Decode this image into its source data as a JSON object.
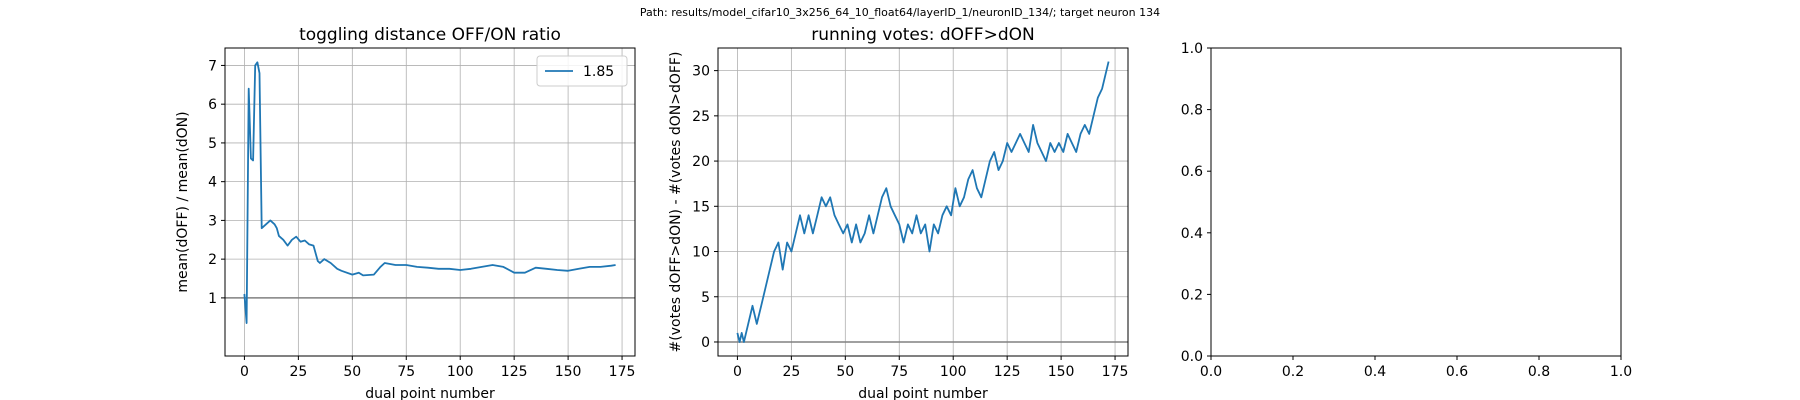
{
  "suptitle": "Path: results/model_cifar10_3x256_64_10_float64/layerID_1/neuronID_134/; target neuron 134",
  "colors": {
    "series": "#1f77b4",
    "grid": "#b0b0b0",
    "reference_line": "#808080"
  },
  "chart_data": [
    {
      "type": "line",
      "title": "toggling distance OFF/ON ratio",
      "xlabel": "dual point number",
      "ylabel": "mean(dOFF) / mean(dON)",
      "xlim": [
        -9,
        181
      ],
      "ylim": [
        -0.5,
        7.45
      ],
      "xticks": [
        0,
        25,
        50,
        75,
        100,
        125,
        150,
        175
      ],
      "yticks": [
        1,
        2,
        3,
        4,
        5,
        6,
        7
      ],
      "grid": true,
      "reference_y": 1,
      "legend": {
        "placement": "upper-right",
        "entries": [
          "1.85"
        ]
      },
      "series": [
        {
          "name": "1.85",
          "x": [
            0,
            1,
            2,
            3,
            4,
            5,
            6,
            7,
            8,
            10,
            12,
            14,
            15,
            16,
            18,
            20,
            22,
            24,
            26,
            28,
            30,
            32,
            34,
            35,
            37,
            40,
            43,
            45,
            50,
            53,
            55,
            60,
            63,
            65,
            70,
            75,
            80,
            85,
            90,
            95,
            100,
            105,
            110,
            115,
            120,
            125,
            130,
            135,
            140,
            145,
            150,
            155,
            160,
            165,
            170,
            172
          ],
          "y": [
            1.1,
            0.35,
            6.4,
            4.6,
            4.55,
            7.0,
            7.08,
            6.8,
            2.8,
            2.9,
            3.0,
            2.9,
            2.8,
            2.6,
            2.5,
            2.35,
            2.5,
            2.58,
            2.45,
            2.48,
            2.38,
            2.35,
            1.95,
            1.9,
            2.0,
            1.9,
            1.75,
            1.7,
            1.6,
            1.65,
            1.58,
            1.6,
            1.8,
            1.9,
            1.85,
            1.85,
            1.8,
            1.78,
            1.75,
            1.75,
            1.72,
            1.75,
            1.8,
            1.85,
            1.8,
            1.65,
            1.65,
            1.78,
            1.75,
            1.72,
            1.7,
            1.75,
            1.8,
            1.8,
            1.83,
            1.85
          ]
        }
      ]
    },
    {
      "type": "line",
      "title": "running votes: dOFF>dON",
      "xlabel": "dual point number",
      "ylabel": "#(votes dOFF>dON) - #(votes dON>dOFF)",
      "xlim": [
        -9,
        181
      ],
      "ylim": [
        -1.55,
        32.5
      ],
      "xticks": [
        0,
        25,
        50,
        75,
        100,
        125,
        150,
        175
      ],
      "yticks": [
        0,
        5,
        10,
        15,
        20,
        25,
        30
      ],
      "grid": true,
      "reference_y": 0,
      "series": [
        {
          "x": [
            0,
            1,
            2,
            3,
            5,
            7,
            9,
            11,
            13,
            15,
            17,
            19,
            21,
            23,
            25,
            27,
            29,
            31,
            33,
            35,
            37,
            39,
            41,
            43,
            45,
            47,
            49,
            51,
            53,
            55,
            57,
            59,
            61,
            63,
            65,
            67,
            69,
            71,
            73,
            75,
            77,
            79,
            81,
            83,
            85,
            87,
            89,
            91,
            93,
            95,
            97,
            99,
            101,
            103,
            105,
            107,
            109,
            111,
            113,
            115,
            117,
            119,
            121,
            123,
            125,
            127,
            129,
            131,
            133,
            135,
            137,
            139,
            141,
            143,
            145,
            147,
            149,
            151,
            153,
            155,
            157,
            159,
            161,
            163,
            165,
            167,
            169,
            172
          ],
          "y": [
            1,
            0,
            1,
            0,
            2,
            4,
            2,
            4,
            6,
            8,
            10,
            11,
            8,
            11,
            10,
            12,
            14,
            12,
            14,
            12,
            14,
            16,
            15,
            16,
            14,
            13,
            12,
            13,
            11,
            13,
            11,
            12,
            14,
            12,
            14,
            16,
            17,
            15,
            14,
            13,
            11,
            13,
            12,
            14,
            12,
            13,
            10,
            13,
            12,
            14,
            15,
            14,
            17,
            15,
            16,
            18,
            19,
            17,
            16,
            18,
            20,
            21,
            19,
            20,
            22,
            21,
            22,
            23,
            22,
            21,
            24,
            22,
            21,
            20,
            22,
            21,
            22,
            21,
            23,
            22,
            21,
            23,
            24,
            23,
            25,
            27,
            28,
            31
          ]
        }
      ]
    },
    {
      "type": "line",
      "title": "",
      "xlim": [
        0,
        1
      ],
      "ylim": [
        0,
        1
      ],
      "xticks": [
        0.0,
        0.2,
        0.4,
        0.6,
        0.8,
        1.0
      ],
      "yticks": [
        0.0,
        0.2,
        0.4,
        0.6,
        0.8,
        1.0
      ],
      "xtick_labels": [
        "0.0",
        "0.2",
        "0.4",
        "0.6",
        "0.8",
        "1.0"
      ],
      "ytick_labels": [
        "0.0",
        "0.2",
        "0.4",
        "0.6",
        "0.8",
        "1.0"
      ],
      "grid": false,
      "series": []
    }
  ]
}
